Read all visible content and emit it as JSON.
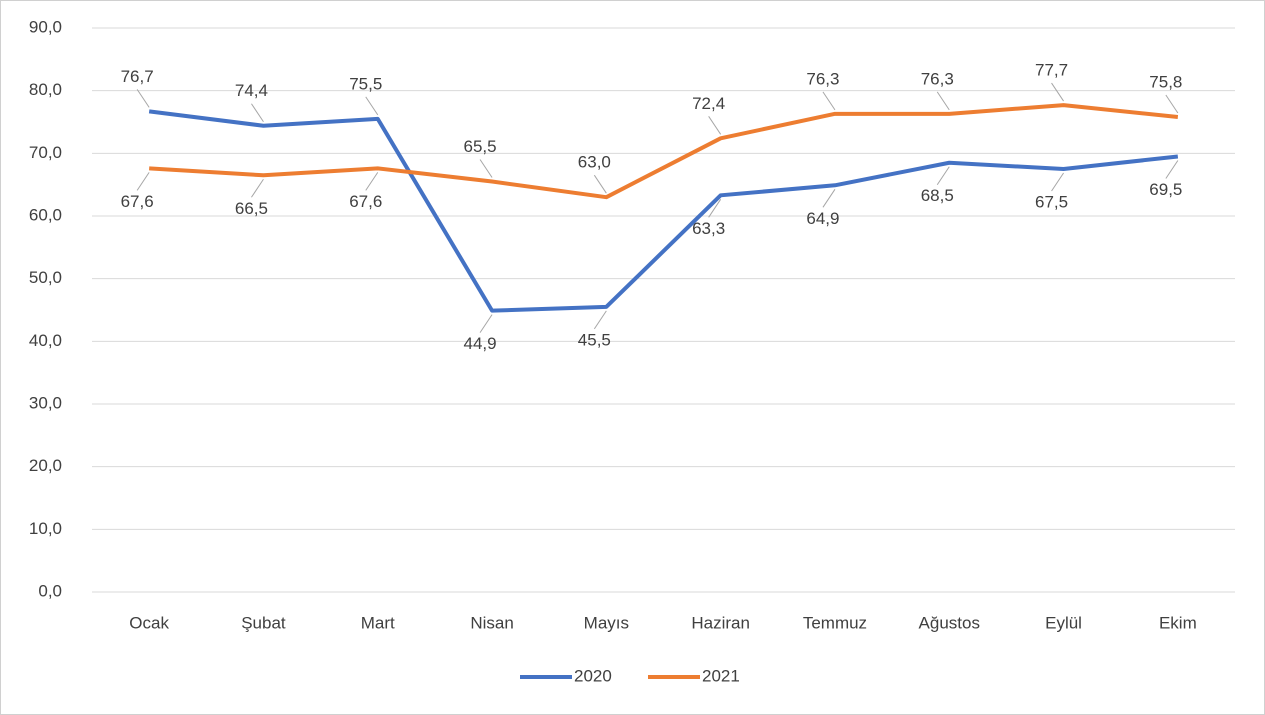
{
  "chart_data": {
    "type": "line",
    "categories": [
      "Ocak",
      "Şubat",
      "Mart",
      "Nisan",
      "Mayıs",
      "Haziran",
      "Temmuz",
      "Ağustos",
      "Eylül",
      "Ekim"
    ],
    "series": [
      {
        "name": "2020",
        "color": "#4472c4",
        "values": [
          76.7,
          74.4,
          75.5,
          44.9,
          45.5,
          63.3,
          64.9,
          68.5,
          67.5,
          69.5
        ],
        "value_labels": [
          "76,7",
          "74,4",
          "75,5",
          "44,9",
          "45,5",
          "63,3",
          "64,9",
          "68,5",
          "67,5",
          "69,5"
        ]
      },
      {
        "name": "2021",
        "color": "#ed7d31",
        "values": [
          67.6,
          66.5,
          67.6,
          65.5,
          63.0,
          72.4,
          76.3,
          76.3,
          77.7,
          75.8
        ],
        "value_labels": [
          "67,6",
          "66,5",
          "67,6",
          "65,5",
          "63,0",
          "72,4",
          "76,3",
          "76,3",
          "77,7",
          "75,8"
        ]
      }
    ],
    "ylim": [
      0,
      90
    ],
    "yticks": [
      {
        "value": 0,
        "label": "0,0"
      },
      {
        "value": 10,
        "label": "10,0"
      },
      {
        "value": 20,
        "label": "20,0"
      },
      {
        "value": 30,
        "label": "30,0"
      },
      {
        "value": 40,
        "label": "40,0"
      },
      {
        "value": 50,
        "label": "50,0"
      },
      {
        "value": 60,
        "label": "60,0"
      },
      {
        "value": 70,
        "label": "70,0"
      },
      {
        "value": 80,
        "label": "80,0"
      },
      {
        "value": 90,
        "label": "90,0"
      }
    ],
    "grid": true,
    "legend": "bottom"
  }
}
